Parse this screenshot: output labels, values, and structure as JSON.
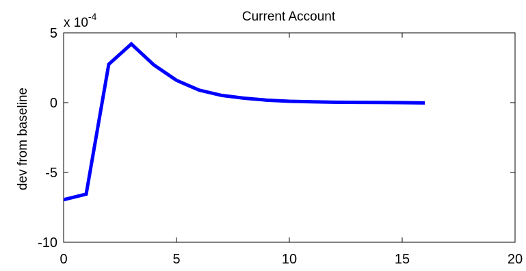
{
  "chart_data": {
    "type": "line",
    "title": "Current Account",
    "xlabel": "",
    "ylabel": "dev from baseline",
    "exponent_base": "x 10",
    "exponent_power": "-4",
    "xlim": [
      0,
      20
    ],
    "ylim": [
      -10,
      5
    ],
    "x_ticks": [
      0,
      5,
      10,
      15,
      20
    ],
    "y_ticks": [
      -10,
      -5,
      0,
      5
    ],
    "grid": false,
    "line_color": "#0000ff",
    "series": [
      {
        "x": [
          0,
          1,
          2,
          3,
          4,
          5,
          6,
          7,
          8,
          9,
          10,
          11,
          12,
          13,
          14,
          15,
          16
        ],
        "values": [
          -6.95,
          -6.55,
          2.75,
          4.2,
          2.7,
          1.6,
          0.9,
          0.52,
          0.32,
          0.18,
          0.1,
          0.06,
          0.03,
          0.02,
          0.01,
          0.0,
          -0.02
        ]
      }
    ]
  }
}
